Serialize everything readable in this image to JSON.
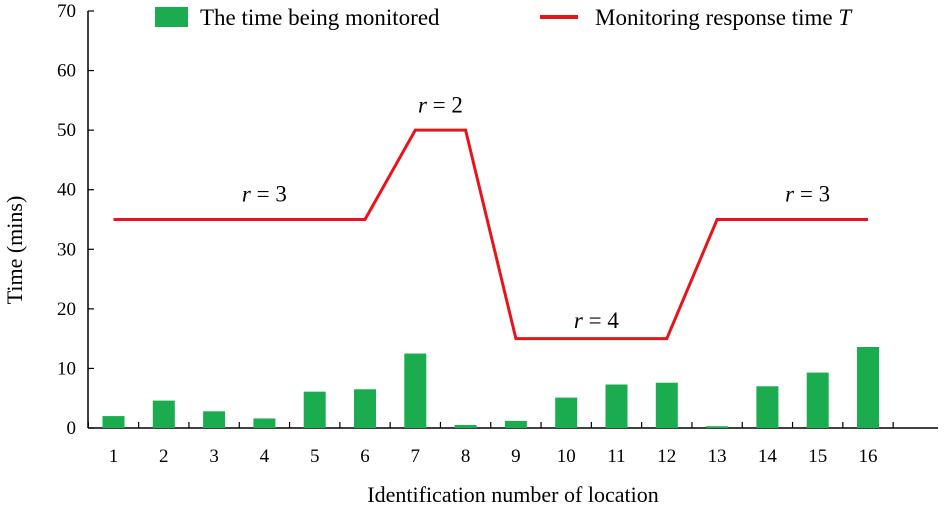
{
  "chart_data": {
    "type": "bar",
    "xlabel": "Identification number of location",
    "ylabel": "Time (mins)",
    "ylim": [
      0,
      70
    ],
    "yticks": [
      0,
      10,
      20,
      30,
      40,
      50,
      60,
      70
    ],
    "grid": false,
    "legend_position": "top",
    "categories": [
      "1",
      "2",
      "3",
      "4",
      "5",
      "6",
      "7",
      "8",
      "9",
      "10",
      "11",
      "12",
      "13",
      "14",
      "15",
      "16"
    ],
    "series": [
      {
        "name": "The time being monitored",
        "type": "bar",
        "color": "#1aac4e",
        "values": [
          2.0,
          4.6,
          2.8,
          1.6,
          6.1,
          6.5,
          12.5,
          0.5,
          1.2,
          5.1,
          7.3,
          7.6,
          0.3,
          7.0,
          9.3,
          13.6
        ]
      },
      {
        "name": "Monitoring response time",
        "name_symbol": "T",
        "type": "line",
        "color": "#e8141c",
        "values": [
          35,
          35,
          35,
          35,
          35,
          35,
          50,
          50,
          15,
          15,
          15,
          15,
          35,
          35,
          35,
          35
        ]
      }
    ],
    "annotations": [
      {
        "italic": "r",
        "text": " = 3",
        "x": 4,
        "y": 38
      },
      {
        "italic": "r",
        "text": " = 2",
        "x": 7.5,
        "y": 53
      },
      {
        "italic": "r",
        "text": " = 4",
        "x": 10.6,
        "y": 16.8
      },
      {
        "italic": "r",
        "text": " = 3",
        "x": 14.8,
        "y": 38
      }
    ]
  }
}
